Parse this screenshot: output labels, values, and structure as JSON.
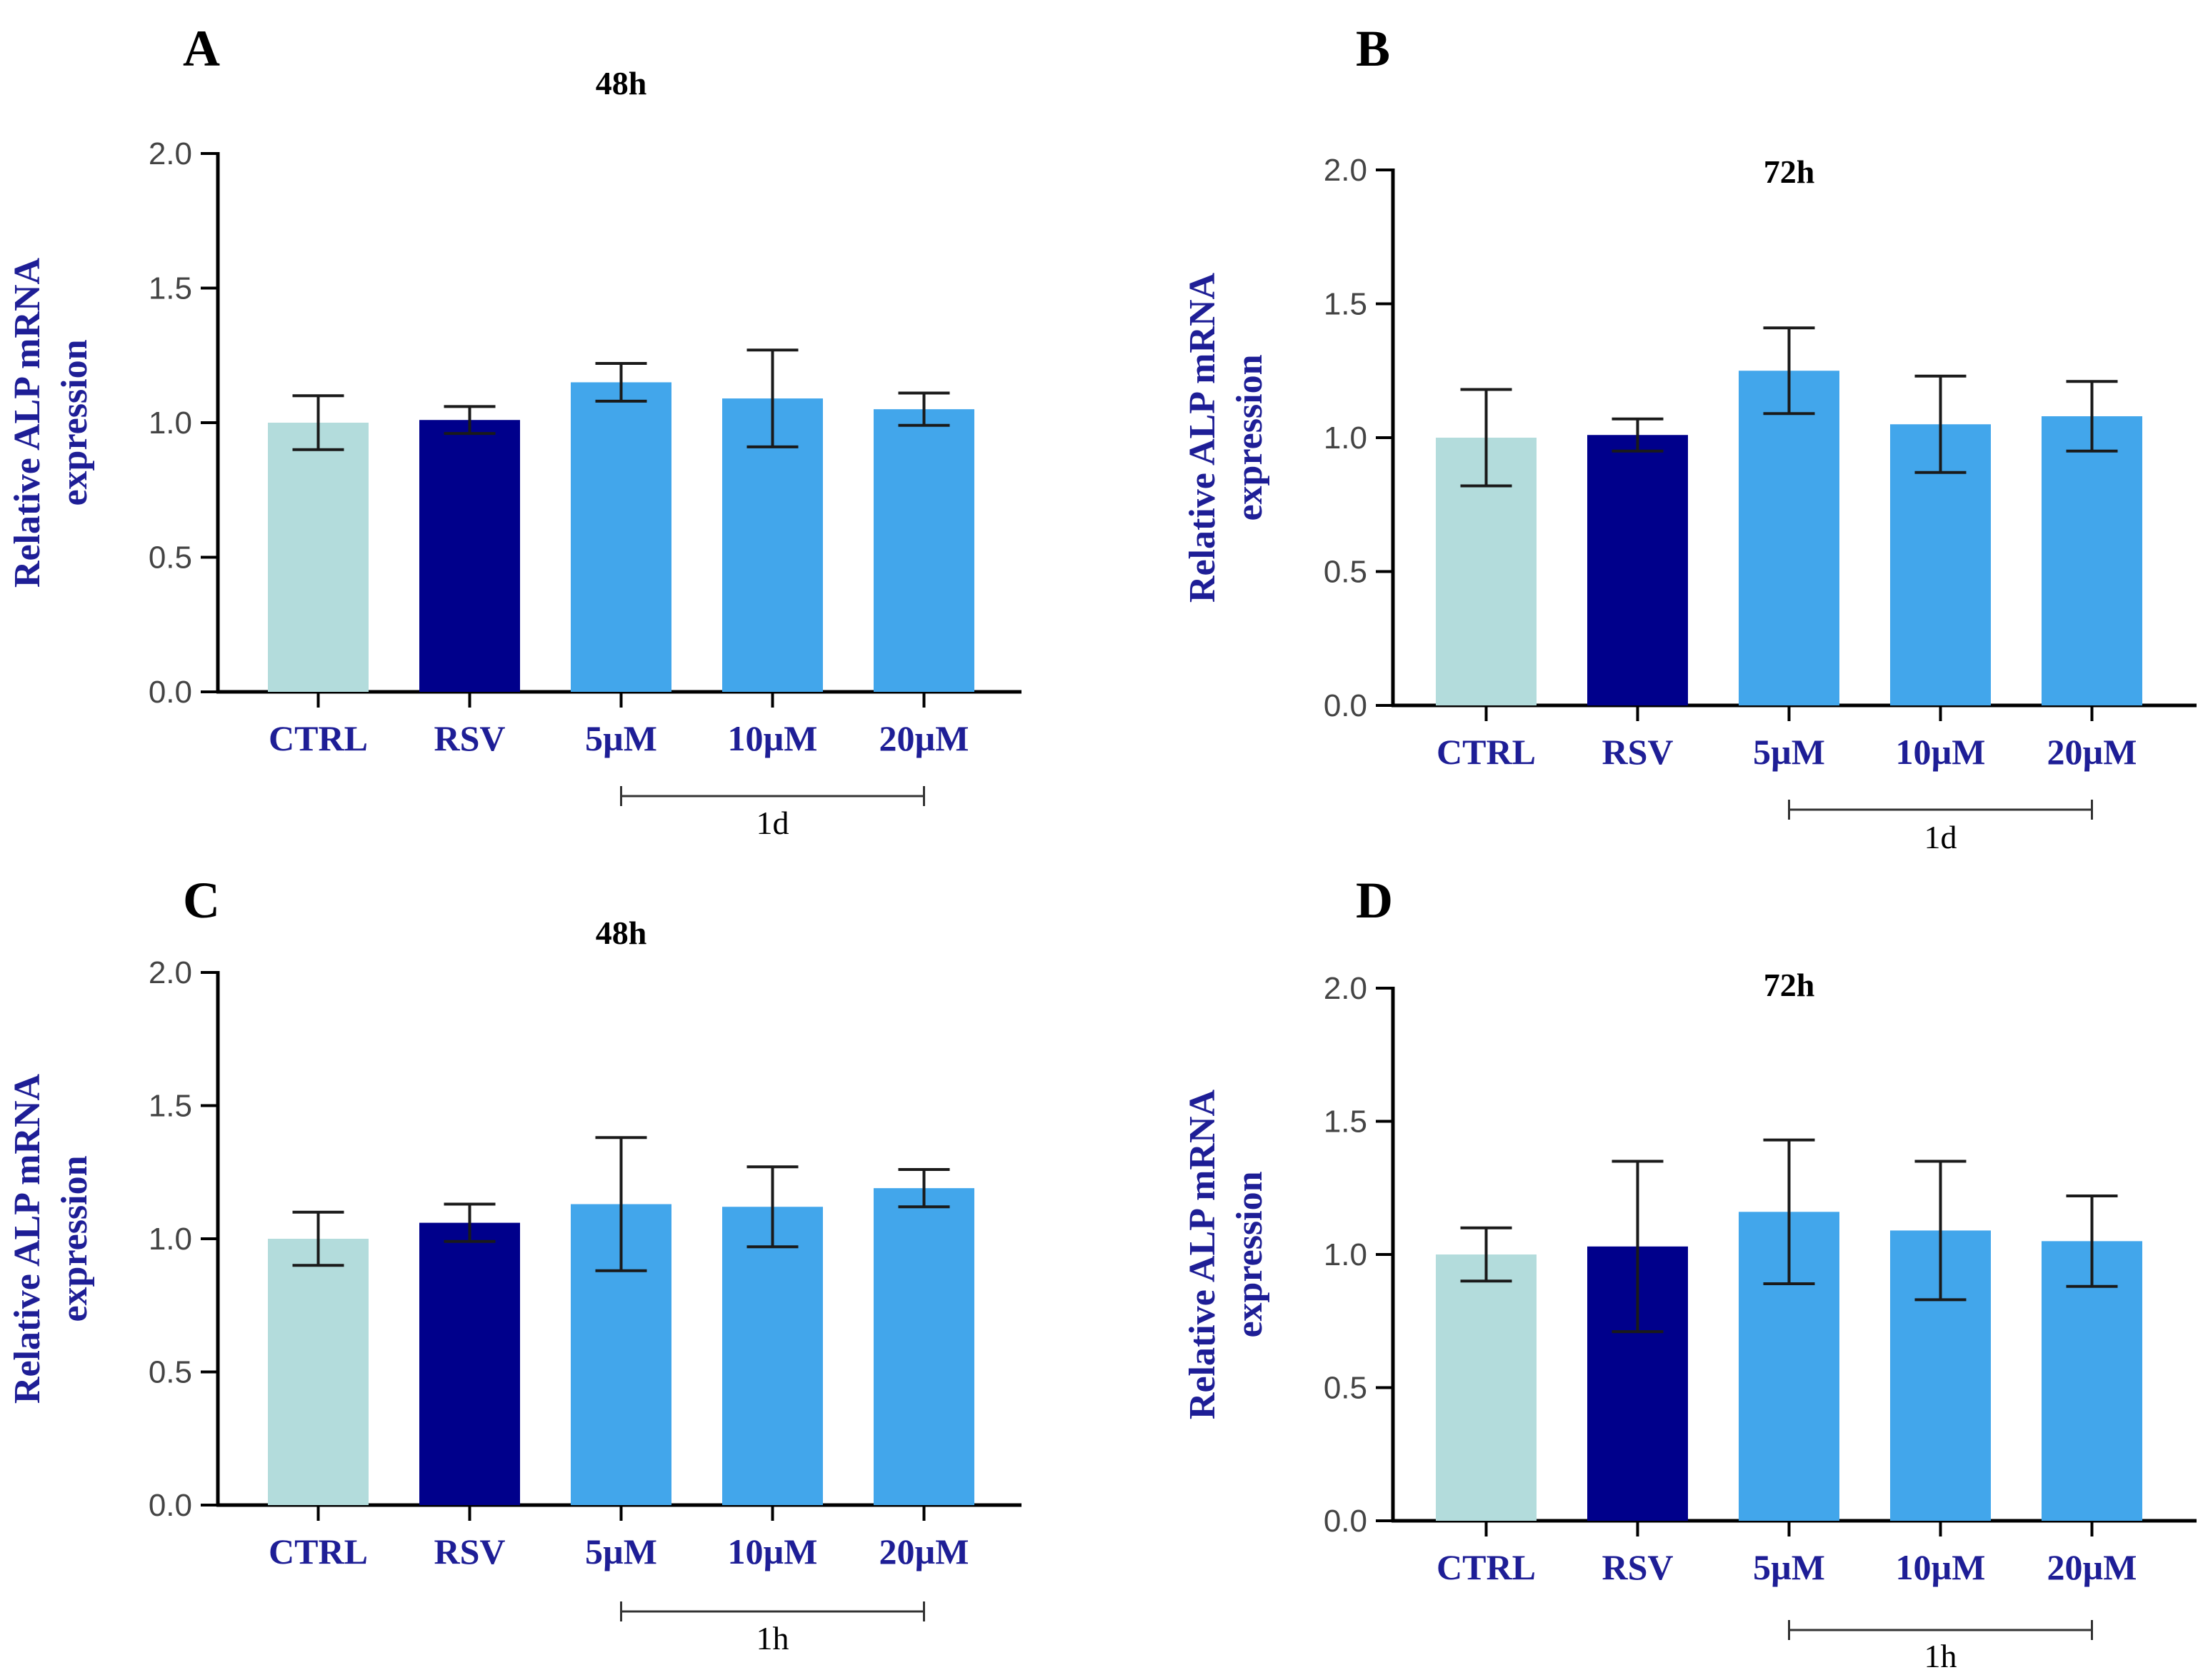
{
  "figure": {
    "colors": {
      "ctrl": "#b3dcdc",
      "rsv": "#00008b",
      "treat": "#42a6eb",
      "axis": "#000000",
      "label": "#1e1e96"
    }
  },
  "chart_data": [
    {
      "type": "bar",
      "panel": "A",
      "title": "48h",
      "xlabel": "",
      "ylabel": [
        "Relative ALP mRNA",
        "expression"
      ],
      "ylim": [
        0,
        2.0
      ],
      "yticks": [
        "0.0",
        "0.5",
        "1.0",
        "1.5",
        "2.0"
      ],
      "categories": [
        "CTRL",
        "RSV",
        "5µM",
        "10µM",
        "20µM"
      ],
      "values": [
        1.0,
        1.01,
        1.15,
        1.09,
        1.05
      ],
      "errors": [
        0.1,
        0.05,
        0.07,
        0.18,
        0.06
      ],
      "group_annotation": {
        "label": "1d",
        "from": "5µM",
        "to": "20µM"
      }
    },
    {
      "type": "bar",
      "panel": "B",
      "title": "72h",
      "xlabel": "",
      "ylabel": [
        "Relative ALP mRNA",
        "expression"
      ],
      "ylim": [
        0,
        2.0
      ],
      "yticks": [
        "0.0",
        "0.5",
        "1.0",
        "1.5",
        "2.0"
      ],
      "categories": [
        "CTRL",
        "RSV",
        "5µM",
        "10µM",
        "20µM"
      ],
      "values": [
        1.0,
        1.01,
        1.25,
        1.05,
        1.08
      ],
      "errors": [
        0.18,
        0.06,
        0.16,
        0.18,
        0.13
      ],
      "group_annotation": {
        "label": "1d",
        "from": "5µM",
        "to": "20µM"
      }
    },
    {
      "type": "bar",
      "panel": "C",
      "title": "48h",
      "xlabel": "",
      "ylabel": [
        "Relative ALP mRNA",
        "expression"
      ],
      "ylim": [
        0,
        2.0
      ],
      "yticks": [
        "0.0",
        "0.5",
        "1.0",
        "1.5",
        "2.0"
      ],
      "categories": [
        "CTRL",
        "RSV",
        "5µM",
        "10µM",
        "20µM"
      ],
      "values": [
        1.0,
        1.06,
        1.13,
        1.12,
        1.19
      ],
      "errors": [
        0.1,
        0.07,
        0.25,
        0.15,
        0.07
      ],
      "group_annotation": {
        "label": "1h",
        "from": "5µM",
        "to": "20µM"
      }
    },
    {
      "type": "bar",
      "panel": "D",
      "title": "72h",
      "xlabel": "",
      "ylabel": [
        "Relative ALP mRNA",
        "expression"
      ],
      "ylim": [
        0,
        2.0
      ],
      "yticks": [
        "0.0",
        "0.5",
        "1.0",
        "1.5",
        "2.0"
      ],
      "categories": [
        "CTRL",
        "RSV",
        "5µM",
        "10µM",
        "20µM"
      ],
      "values": [
        1.0,
        1.03,
        1.16,
        1.09,
        1.05
      ],
      "errors": [
        0.1,
        0.32,
        0.27,
        0.26,
        0.17
      ],
      "group_annotation": {
        "label": "1h",
        "from": "5µM",
        "to": "20µM"
      }
    }
  ]
}
